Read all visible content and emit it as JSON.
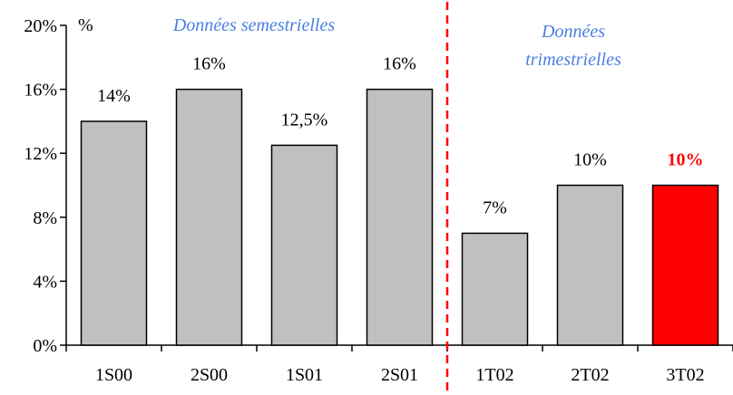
{
  "chart_data": {
    "type": "bar",
    "unit_label": "%",
    "categories": [
      "1S00",
      "2S00",
      "1S01",
      "2S01",
      "1T02",
      "2T02",
      "3T02"
    ],
    "values": [
      14,
      16,
      12.5,
      16,
      7,
      10,
      10
    ],
    "value_labels": [
      "14%",
      "16%",
      "12,5%",
      "16%",
      "7%",
      "10%",
      "10%"
    ],
    "ylim": [
      0,
      20
    ],
    "yticks": [
      0,
      4,
      8,
      12,
      16,
      20
    ],
    "ytick_labels": [
      "0%",
      "4%",
      "8%",
      "12%",
      "16%",
      "20%"
    ],
    "highlight_index": 6,
    "bar_color": "#c0c0c0",
    "highlight_color": "#ff0000",
    "divider_color": "#ff0000",
    "section_label_color": "#4a7fe0",
    "annotations": {
      "semestrial": "Données semestrielles",
      "quarterly_line1": "Données",
      "quarterly_line2": "trimestrielles"
    }
  }
}
